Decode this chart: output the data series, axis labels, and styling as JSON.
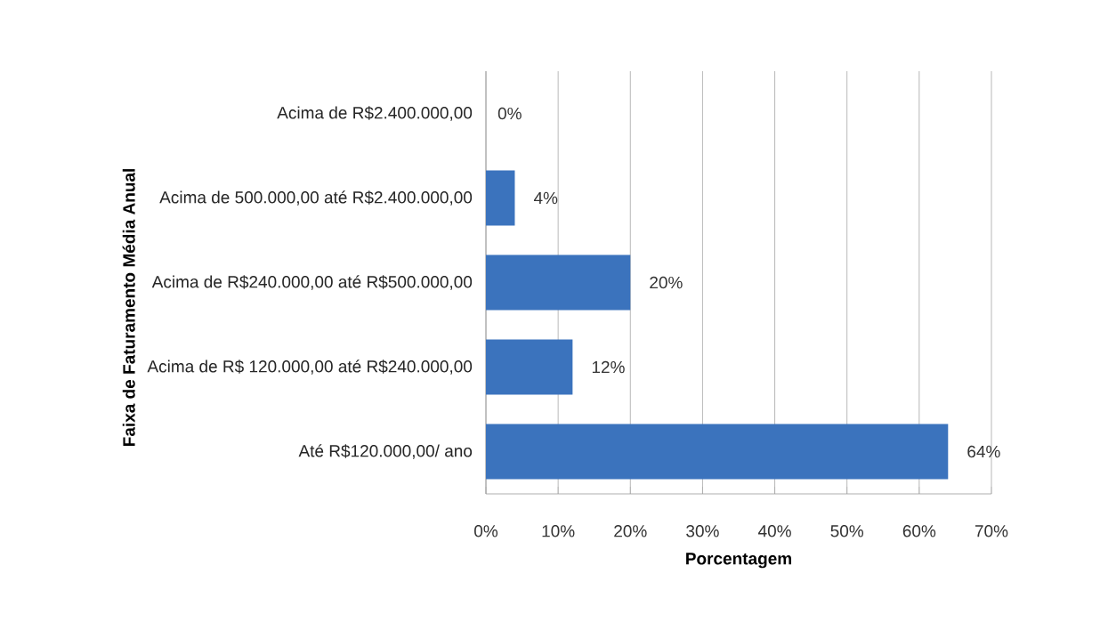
{
  "chart_data": {
    "type": "bar",
    "orientation": "horizontal",
    "categories": [
      "Acima de R$2.400.000,00",
      "Acima de 500.000,00 até R$2.400.000,00",
      "Acima de R$240.000,00 até R$500.000,00",
      "Acima de R$ 120.000,00 até R$240.000,00",
      "Até R$120.000,00/ ano"
    ],
    "values": [
      0,
      4,
      20,
      12,
      64
    ],
    "value_labels": [
      "0%",
      "4%",
      "20%",
      "12%",
      "64%"
    ],
    "color": "#3b73bd",
    "xlabel": "Porcentagem",
    "ylabel": "Faixa de Faturamento Média Anual",
    "xlim": [
      0,
      70
    ],
    "xticks": [
      {
        "value": 0,
        "label": "0%"
      },
      {
        "value": 10,
        "label": "10%"
      },
      {
        "value": 20,
        "label": "20%"
      },
      {
        "value": 30,
        "label": "30%"
      },
      {
        "value": 40,
        "label": "40%"
      },
      {
        "value": 50,
        "label": "50%"
      },
      {
        "value": 60,
        "label": "60%"
      },
      {
        "value": 70,
        "label": "70%"
      }
    ],
    "grid": "x"
  }
}
